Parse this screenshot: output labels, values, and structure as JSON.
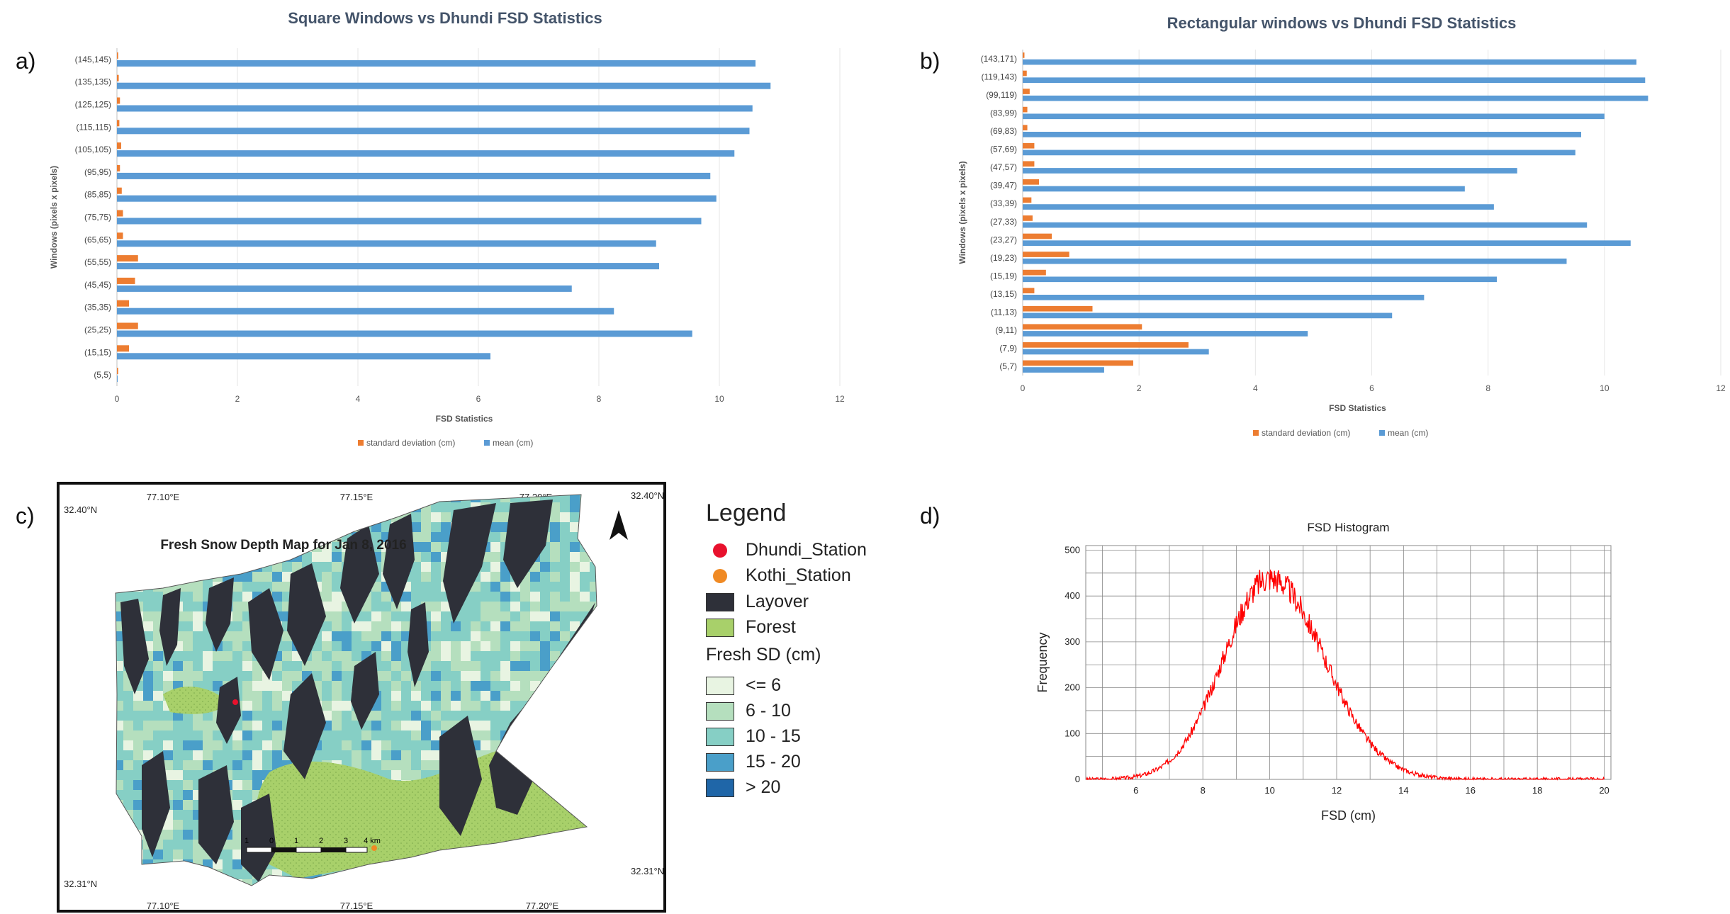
{
  "panel_labels": [
    "a)",
    "b)",
    "c)",
    "d)"
  ],
  "chart_data": [
    {
      "type": "bar",
      "title": "Square Windows vs Dhundi FSD Statistics",
      "xlabel": "FSD Statistics",
      "ylabel": "Windows (pixels x pixels)",
      "orientation": "horizontal",
      "xlim": [
        0,
        12
      ],
      "xticks": [
        "0",
        "2",
        "4",
        "6",
        "8",
        "10",
        "12"
      ],
      "categories": [
        "(5,5)",
        "(15,15)",
        "(25,25)",
        "(35,35)",
        "(45,45)",
        "(55,55)",
        "(65,65)",
        "(75,75)",
        "(85,85)",
        "(95,95)",
        "(105,105)",
        "(115,115)",
        "(125,125)",
        "(135,135)",
        "(145,145)"
      ],
      "series": [
        {
          "name": "standard deviation (cm)",
          "color": "#ED7D31",
          "values": [
            0.02,
            0.2,
            0.35,
            0.2,
            0.3,
            0.35,
            0.1,
            0.1,
            0.08,
            0.05,
            0.07,
            0.04,
            0.05,
            0.03,
            0.02
          ]
        },
        {
          "name": "mean (cm)",
          "color": "#5B9BD5",
          "values": [
            0.0,
            6.2,
            9.55,
            8.25,
            7.55,
            9.0,
            8.95,
            9.7,
            9.95,
            9.85,
            10.25,
            10.5,
            10.55,
            10.85,
            10.6
          ]
        }
      ],
      "legend_position": "bottom",
      "grid": true
    },
    {
      "type": "bar",
      "title": "Rectangular windows vs Dhundi FSD Statistics",
      "xlabel": "FSD Statistics",
      "ylabel": "Windows (pixels x pixels)",
      "orientation": "horizontal",
      "xlim": [
        0,
        12
      ],
      "xticks": [
        "0",
        "2",
        "4",
        "6",
        "8",
        "10",
        "12"
      ],
      "categories": [
        "(5,7)",
        "(7,9)",
        "(9,11)",
        "(11,13)",
        "(13,15)",
        "(15,19)",
        "(19,23)",
        "(23,27)",
        "(27,33)",
        "(33,39)",
        "(39,47)",
        "(47,57)",
        "(57,69)",
        "(69,83)",
        "(83,99)",
        "(99,119)",
        "(119,143)",
        "(143,171)"
      ],
      "series": [
        {
          "name": "standard deviation (cm)",
          "color": "#ED7D31",
          "values": [
            1.9,
            2.85,
            2.05,
            1.2,
            0.2,
            0.4,
            0.8,
            0.5,
            0.17,
            0.15,
            0.28,
            0.2,
            0.2,
            0.08,
            0.08,
            0.12,
            0.07,
            0.03
          ]
        },
        {
          "name": "mean (cm)",
          "color": "#5B9BD5",
          "values": [
            1.4,
            3.2,
            4.9,
            6.35,
            6.9,
            8.15,
            9.35,
            10.45,
            9.7,
            8.1,
            7.6,
            8.5,
            9.5,
            9.6,
            10.0,
            10.75,
            10.7,
            10.55
          ]
        }
      ],
      "legend_position": "bottom",
      "grid": true
    },
    {
      "type": "line",
      "title": "FSD Histogram",
      "xlabel": "FSD (cm)",
      "ylabel": "Frequency",
      "xlim": [
        4.5,
        20.2
      ],
      "ylim": [
        0,
        510
      ],
      "xticks": [
        "6",
        "8",
        "10",
        "12",
        "14",
        "16",
        "18",
        "20"
      ],
      "yticks": [
        "0",
        "100",
        "200",
        "300",
        "400",
        "500"
      ],
      "peak": {
        "x": 10.0,
        "y": 440
      },
      "spread_sd": 1.45,
      "color": "#ff0000",
      "grid": true
    }
  ],
  "map": {
    "title": "Fresh Snow Depth Map for Jan 8, 2016",
    "top_lon_labels": [
      "77.10°E",
      "77.15°E",
      "77.20°E"
    ],
    "bottom_lon_labels": [
      "77.10°E",
      "77.15°E",
      "77.20°E"
    ],
    "lat_top_left": "32.40°N",
    "lat_top_right": "32.40°N",
    "lat_bottom_left": "32.31°N",
    "lat_bottom_right": "32.31°N",
    "scale_labels": [
      "1",
      "0",
      "1",
      "2",
      "3",
      "4 km"
    ],
    "colors": {
      "layover": "#2e3039",
      "forest": "#a8d06a",
      "sd_le6": "#e8f4e2",
      "sd_6_10": "#b5dfbe",
      "sd_10_15": "#86cfc5",
      "sd_15_20": "#4a9fc9",
      "sd_gt20": "#1f66a8",
      "dhundi": "#e8112d",
      "kothi": "#f08a24"
    }
  },
  "legend": {
    "title": "Legend",
    "items": [
      {
        "label": "Dhundi_Station"
      },
      {
        "label": "Kothi_Station"
      },
      {
        "label": "Layover"
      },
      {
        "label": "Forest"
      }
    ],
    "sd_title": "Fresh SD (cm)",
    "sd_items": [
      {
        "label": "<= 6"
      },
      {
        "label": "6 - 10"
      },
      {
        "label": "10 - 15"
      },
      {
        "label": "15 - 20"
      },
      {
        "label": "> 20"
      }
    ]
  }
}
